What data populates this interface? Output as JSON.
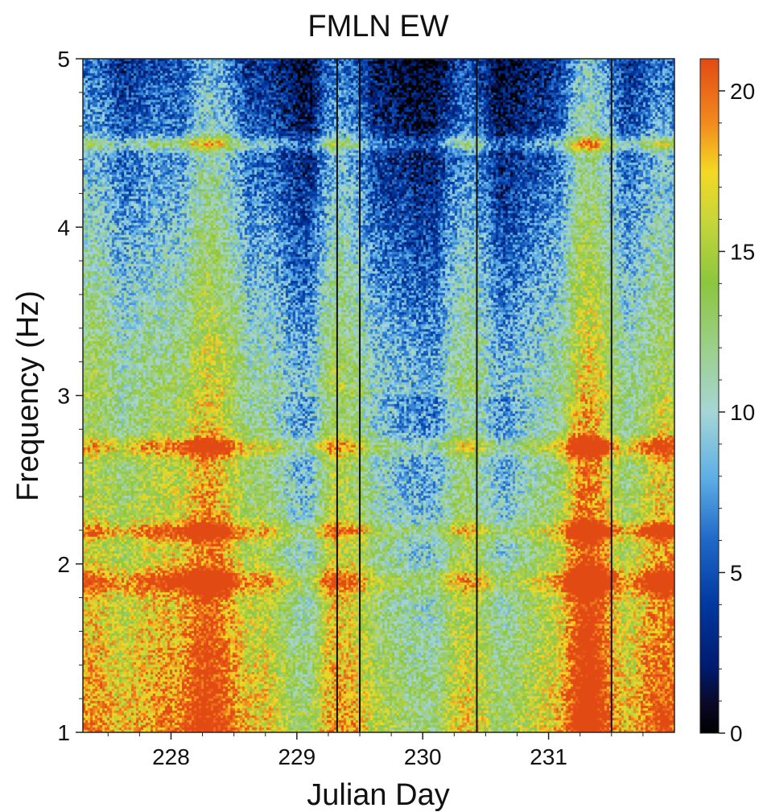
{
  "chart_data": {
    "type": "heatmap",
    "title": "FMLN EW",
    "xlabel": "Julian Day",
    "ylabel": "Frequency (Hz)",
    "xlim": [
      227.3,
      232.0
    ],
    "ylim": [
      1,
      5
    ],
    "xticks": [
      228,
      229,
      230,
      231
    ],
    "yticks": [
      1,
      2,
      3,
      4,
      5
    ],
    "colorbar": {
      "range": [
        0,
        21
      ],
      "ticks": [
        0,
        5,
        10,
        15,
        20
      ],
      "colormap": [
        {
          "v": 0,
          "color": "#000000"
        },
        {
          "v": 1,
          "color": "#0a0a2a"
        },
        {
          "v": 2,
          "color": "#001a6e"
        },
        {
          "v": 4,
          "color": "#0038a0"
        },
        {
          "v": 6,
          "color": "#1f68c8"
        },
        {
          "v": 8,
          "color": "#5fb0e6"
        },
        {
          "v": 10,
          "color": "#a6d6d6"
        },
        {
          "v": 12,
          "color": "#9ccf8a"
        },
        {
          "v": 14,
          "color": "#8cc63f"
        },
        {
          "v": 16,
          "color": "#c8d63a"
        },
        {
          "v": 17.5,
          "color": "#f5d823"
        },
        {
          "v": 19,
          "color": "#f28a1e"
        },
        {
          "v": 21,
          "color": "#e24a14"
        }
      ]
    },
    "data_gaps_days": [
      229.32,
      229.5,
      230.43,
      231.5
    ],
    "band_frequencies_hz": [
      1.9,
      2.2,
      2.7,
      4.5
    ],
    "note_values": "Spectral amplitude (0-21) over Julian Day 227.3-232.0 and 1-5 Hz; daily cycles with strong energy below ~2.7 Hz and peaks near 228.2, 231.3 and 231.9."
  }
}
